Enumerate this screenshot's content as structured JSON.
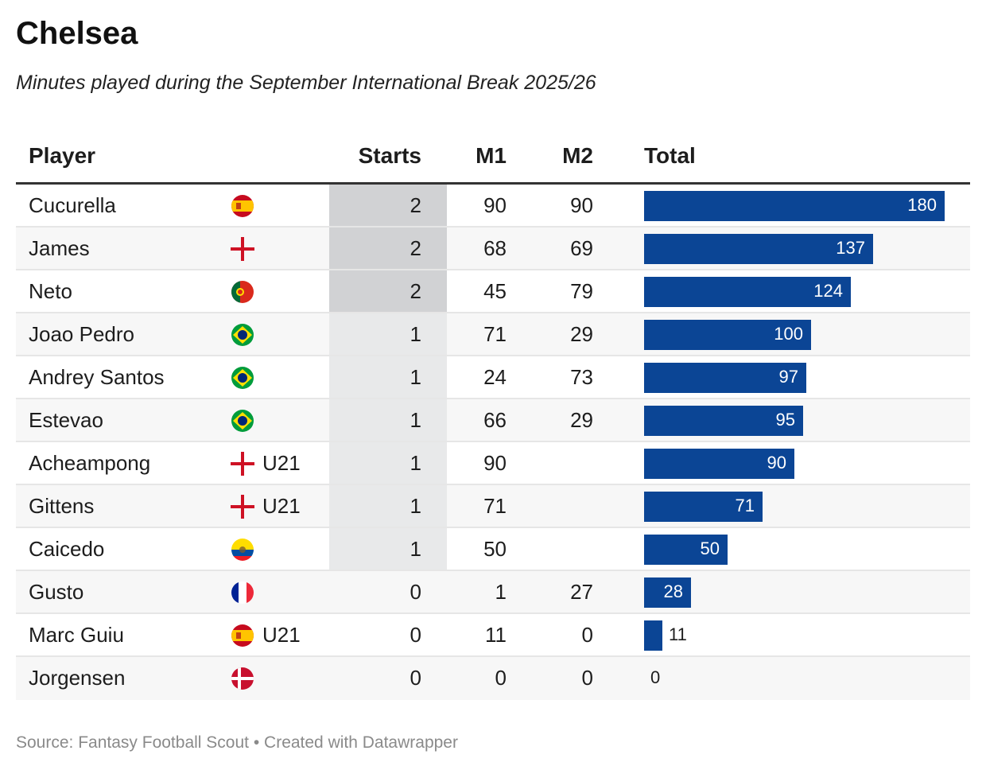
{
  "title": "Chelsea",
  "subtitle": "Minutes played during the September International Break 2025/26",
  "columns": {
    "player": "Player",
    "starts": "Starts",
    "m1": "M1",
    "m2": "M2",
    "total": "Total"
  },
  "footer": {
    "source": "Source: Fantasy Football Scout",
    "separator": " • ",
    "created": "Created with Datawrapper"
  },
  "colors": {
    "bar": "#0b4595",
    "starts_2": "#d1d2d4",
    "starts_1": "#e8e9ea"
  },
  "chart_data": {
    "type": "table",
    "title": "Chelsea",
    "subtitle": "Minutes played during the September International Break 2025/26",
    "columns": [
      "Player",
      "Starts",
      "M1",
      "M2",
      "Total"
    ],
    "total_range": [
      0,
      180
    ],
    "rows": [
      {
        "player": "Cucurella",
        "flag": "spain-flag-icon",
        "tag": "",
        "starts": 2,
        "m1": "90",
        "m2": "90",
        "total": 180
      },
      {
        "player": "James",
        "flag": "england-flag-icon",
        "tag": "",
        "starts": 2,
        "m1": "68",
        "m2": "69",
        "total": 137
      },
      {
        "player": "Neto",
        "flag": "portugal-flag-icon",
        "tag": "",
        "starts": 2,
        "m1": "45",
        "m2": "79",
        "total": 124
      },
      {
        "player": "Joao Pedro",
        "flag": "brazil-flag-icon",
        "tag": "",
        "starts": 1,
        "m1": "71",
        "m2": "29",
        "total": 100
      },
      {
        "player": "Andrey Santos",
        "flag": "brazil-flag-icon",
        "tag": "",
        "starts": 1,
        "m1": "24",
        "m2": "73",
        "total": 97
      },
      {
        "player": "Estevao",
        "flag": "brazil-flag-icon",
        "tag": "",
        "starts": 1,
        "m1": "66",
        "m2": "29",
        "total": 95
      },
      {
        "player": "Acheampong",
        "flag": "england-flag-icon",
        "tag": "U21",
        "starts": 1,
        "m1": "90",
        "m2": "",
        "total": 90
      },
      {
        "player": "Gittens",
        "flag": "england-flag-icon",
        "tag": "U21",
        "starts": 1,
        "m1": "71",
        "m2": "",
        "total": 71
      },
      {
        "player": "Caicedo",
        "flag": "ecuador-flag-icon",
        "tag": "",
        "starts": 1,
        "m1": "50",
        "m2": "",
        "total": 50
      },
      {
        "player": "Gusto",
        "flag": "france-flag-icon",
        "tag": "",
        "starts": 0,
        "m1": "1",
        "m2": "27",
        "total": 28
      },
      {
        "player": "Marc Guiu",
        "flag": "spain-flag-icon",
        "tag": "U21",
        "starts": 0,
        "m1": "11",
        "m2": "0",
        "total": 11
      },
      {
        "player": "Jorgensen",
        "flag": "denmark-flag-icon",
        "tag": "",
        "starts": 0,
        "m1": "0",
        "m2": "0",
        "total": 0
      }
    ]
  }
}
